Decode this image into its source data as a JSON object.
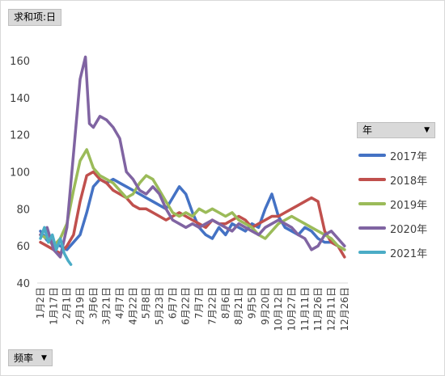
{
  "pivot": {
    "value_field": "求和项:日",
    "row_field": "频率",
    "legend_field": "年"
  },
  "chart_data": {
    "type": "line",
    "ylim": [
      40,
      160
    ],
    "yticks": [
      "40",
      "60",
      "80",
      "100",
      "120",
      "140",
      "160"
    ],
    "x_tick_labels": [
      "1月2日",
      "1月17日",
      "2月1日",
      "2月19日",
      "3月6日",
      "3月21日",
      "4月7日",
      "4月22日",
      "5月8日",
      "5月23日",
      "6月7日",
      "6月22日",
      "7月7日",
      "7月22日",
      "8月6日",
      "8月21日",
      "9月5日",
      "9月20日",
      "10月12日",
      "10月27日",
      "11月11日",
      "11月26日",
      "12月11日",
      "12月26日"
    ],
    "legend_position": "right",
    "series": [
      {
        "name": "2017年",
        "color": "#4472c4",
        "values": [
          [
            0,
            68
          ],
          [
            0.5,
            63
          ],
          [
            1,
            61
          ],
          [
            1.5,
            60
          ],
          [
            2,
            58
          ],
          [
            2.5,
            62
          ],
          [
            3,
            66
          ],
          [
            3.5,
            78
          ],
          [
            4,
            92
          ],
          [
            4.5,
            96
          ],
          [
            5,
            94
          ],
          [
            5.5,
            96
          ],
          [
            6,
            94
          ],
          [
            6.5,
            92
          ],
          [
            7,
            90
          ],
          [
            7.5,
            88
          ],
          [
            8,
            86
          ],
          [
            8.5,
            84
          ],
          [
            9,
            82
          ],
          [
            9.5,
            80
          ],
          [
            10,
            86
          ],
          [
            10.5,
            92
          ],
          [
            11,
            88
          ],
          [
            11.5,
            78
          ],
          [
            12,
            70
          ],
          [
            12.5,
            66
          ],
          [
            13,
            64
          ],
          [
            13.5,
            70
          ],
          [
            14,
            66
          ],
          [
            14.5,
            72
          ],
          [
            15,
            70
          ],
          [
            15.5,
            68
          ],
          [
            16,
            72
          ],
          [
            16.5,
            70
          ],
          [
            17,
            80
          ],
          [
            17.5,
            88
          ],
          [
            18,
            76
          ],
          [
            18.5,
            70
          ],
          [
            19,
            68
          ],
          [
            19.5,
            66
          ],
          [
            20,
            70
          ],
          [
            20.5,
            68
          ],
          [
            21,
            64
          ],
          [
            21.5,
            62
          ],
          [
            22,
            62
          ],
          [
            22.5,
            60
          ],
          [
            23,
            58
          ]
        ]
      },
      {
        "name": "2018年",
        "color": "#c0504d",
        "values": [
          [
            0,
            62
          ],
          [
            0.5,
            60
          ],
          [
            1,
            58
          ],
          [
            1.5,
            56
          ],
          [
            2,
            60
          ],
          [
            2.5,
            66
          ],
          [
            3,
            84
          ],
          [
            3.5,
            98
          ],
          [
            4,
            100
          ],
          [
            4.5,
            96
          ],
          [
            5,
            94
          ],
          [
            5.5,
            90
          ],
          [
            6,
            88
          ],
          [
            6.5,
            86
          ],
          [
            7,
            82
          ],
          [
            7.5,
            80
          ],
          [
            8,
            80
          ],
          [
            8.5,
            78
          ],
          [
            9,
            76
          ],
          [
            9.5,
            74
          ],
          [
            10,
            76
          ],
          [
            10.5,
            78
          ],
          [
            11,
            76
          ],
          [
            11.5,
            74
          ],
          [
            12,
            72
          ],
          [
            12.5,
            70
          ],
          [
            13,
            74
          ],
          [
            13.5,
            72
          ],
          [
            14,
            72
          ],
          [
            14.5,
            74
          ],
          [
            15,
            76
          ],
          [
            15.5,
            74
          ],
          [
            16,
            70
          ],
          [
            16.5,
            72
          ],
          [
            17,
            74
          ],
          [
            17.5,
            76
          ],
          [
            18,
            76
          ],
          [
            18.5,
            78
          ],
          [
            19,
            80
          ],
          [
            19.5,
            82
          ],
          [
            20,
            84
          ],
          [
            20.5,
            86
          ],
          [
            21,
            84
          ],
          [
            21.5,
            68
          ],
          [
            22,
            62
          ],
          [
            22.5,
            60
          ],
          [
            23,
            54
          ]
        ]
      },
      {
        "name": "2019年",
        "color": "#9bbb59",
        "values": [
          [
            0,
            66
          ],
          [
            0.5,
            64
          ],
          [
            1,
            60
          ],
          [
            1.5,
            64
          ],
          [
            2,
            72
          ],
          [
            2.5,
            90
          ],
          [
            3,
            106
          ],
          [
            3.5,
            112
          ],
          [
            4,
            102
          ],
          [
            4.5,
            98
          ],
          [
            5,
            96
          ],
          [
            5.5,
            94
          ],
          [
            6,
            90
          ],
          [
            6.5,
            86
          ],
          [
            7,
            88
          ],
          [
            7.5,
            94
          ],
          [
            8,
            98
          ],
          [
            8.5,
            96
          ],
          [
            9,
            90
          ],
          [
            9.5,
            84
          ],
          [
            10,
            78
          ],
          [
            10.5,
            76
          ],
          [
            11,
            78
          ],
          [
            11.5,
            76
          ],
          [
            12,
            80
          ],
          [
            12.5,
            78
          ],
          [
            13,
            80
          ],
          [
            13.5,
            78
          ],
          [
            14,
            76
          ],
          [
            14.5,
            78
          ],
          [
            15,
            74
          ],
          [
            15.5,
            72
          ],
          [
            16,
            70
          ],
          [
            16.5,
            66
          ],
          [
            17,
            64
          ],
          [
            17.5,
            68
          ],
          [
            18,
            72
          ],
          [
            18.5,
            74
          ],
          [
            19,
            76
          ],
          [
            19.5,
            74
          ],
          [
            20,
            72
          ],
          [
            20.5,
            70
          ],
          [
            21,
            68
          ],
          [
            21.5,
            66
          ],
          [
            22,
            64
          ],
          [
            22.5,
            60
          ],
          [
            23,
            58
          ]
        ]
      },
      {
        "name": "2020年",
        "color": "#8064a2",
        "values": [
          [
            0,
            66
          ],
          [
            0.5,
            70
          ],
          [
            1,
            58
          ],
          [
            1.5,
            54
          ],
          [
            2,
            70
          ],
          [
            2.5,
            110
          ],
          [
            3,
            150
          ],
          [
            3.4,
            162
          ],
          [
            3.7,
            126
          ],
          [
            4,
            124
          ],
          [
            4.5,
            130
          ],
          [
            5,
            128
          ],
          [
            5.5,
            124
          ],
          [
            6,
            118
          ],
          [
            6.5,
            100
          ],
          [
            7,
            96
          ],
          [
            7.5,
            90
          ],
          [
            8,
            88
          ],
          [
            8.5,
            92
          ],
          [
            9,
            88
          ],
          [
            9.5,
            80
          ],
          [
            10,
            74
          ],
          [
            10.5,
            72
          ],
          [
            11,
            70
          ],
          [
            11.5,
            72
          ],
          [
            12,
            70
          ],
          [
            12.5,
            72
          ],
          [
            13,
            74
          ],
          [
            13.5,
            72
          ],
          [
            14,
            70
          ],
          [
            14.5,
            68
          ],
          [
            15,
            72
          ],
          [
            15.5,
            70
          ],
          [
            16,
            68
          ],
          [
            16.5,
            66
          ],
          [
            17,
            70
          ],
          [
            17.5,
            72
          ],
          [
            18,
            74
          ],
          [
            18.5,
            72
          ],
          [
            19,
            70
          ],
          [
            19.5,
            66
          ],
          [
            20,
            64
          ],
          [
            20.5,
            58
          ],
          [
            21,
            60
          ],
          [
            21.5,
            66
          ],
          [
            22,
            68
          ],
          [
            22.5,
            64
          ],
          [
            23,
            60
          ]
        ]
      },
      {
        "name": "2021年",
        "color": "#4bacc6",
        "values": [
          [
            0,
            64
          ],
          [
            0.3,
            70
          ],
          [
            0.6,
            62
          ],
          [
            0.9,
            66
          ],
          [
            1.2,
            58
          ],
          [
            1.5,
            64
          ],
          [
            1.8,
            56
          ],
          [
            2.1,
            52
          ],
          [
            2.3,
            50
          ]
        ]
      }
    ]
  }
}
